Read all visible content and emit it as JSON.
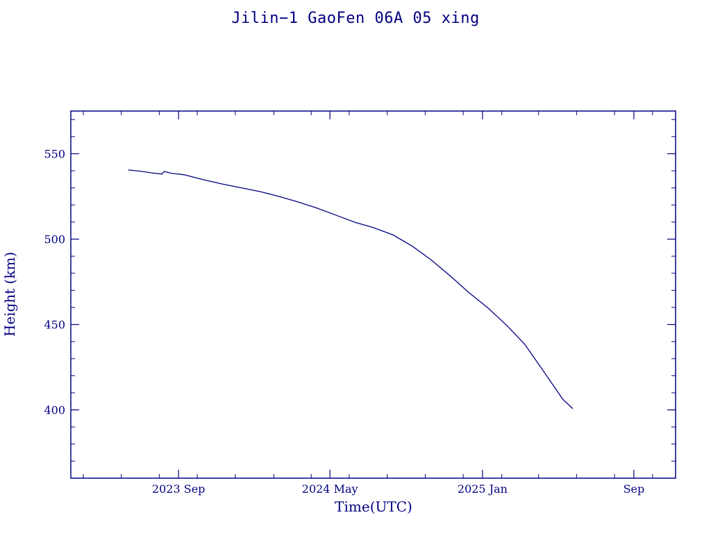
{
  "chart_data": {
    "type": "line",
    "title": "Jilin−1 GaoFen 06A 05 xing",
    "xlabel": "Time(UTC)",
    "ylabel": "Height (km)",
    "color": "#000080",
    "xlim": [
      "2023-03-12",
      "2025-11-07"
    ],
    "ylim": [
      360,
      575
    ],
    "xticks": [
      {
        "date": "2023-09-01",
        "label": "2023 Sep"
      },
      {
        "date": "2024-05-01",
        "label": "2024 May"
      },
      {
        "date": "2025-01-01",
        "label": "2025 Jan"
      },
      {
        "date": "2025-09-01",
        "label": "Sep"
      }
    ],
    "yticks": [
      400,
      450,
      500,
      550
    ],
    "series": [
      {
        "points": [
          {
            "x": "2023-06-12",
            "y": 540.5
          },
          {
            "x": "2023-07-01",
            "y": 539.8
          },
          {
            "x": "2023-07-20",
            "y": 538.8
          },
          {
            "x": "2023-08-05",
            "y": 538.1
          },
          {
            "x": "2023-08-09",
            "y": 539.6
          },
          {
            "x": "2023-08-20",
            "y": 538.6
          },
          {
            "x": "2023-09-10",
            "y": 537.7
          },
          {
            "x": "2023-10-10",
            "y": 534.9
          },
          {
            "x": "2023-11-10",
            "y": 532.3
          },
          {
            "x": "2023-12-10",
            "y": 530.1
          },
          {
            "x": "2024-01-10",
            "y": 527.8
          },
          {
            "x": "2024-02-10",
            "y": 524.9
          },
          {
            "x": "2024-03-10",
            "y": 521.9
          },
          {
            "x": "2024-04-10",
            "y": 518.2
          },
          {
            "x": "2024-05-10",
            "y": 514.1
          },
          {
            "x": "2024-06-10",
            "y": 509.9
          },
          {
            "x": "2024-07-10",
            "y": 506.7
          },
          {
            "x": "2024-08-10",
            "y": 502.5
          },
          {
            "x": "2024-09-10",
            "y": 495.9
          },
          {
            "x": "2024-10-10",
            "y": 488.0
          },
          {
            "x": "2024-11-10",
            "y": 478.5
          },
          {
            "x": "2024-12-10",
            "y": 468.7
          },
          {
            "x": "2025-01-10",
            "y": 459.6
          },
          {
            "x": "2025-02-10",
            "y": 449.1
          },
          {
            "x": "2025-03-10",
            "y": 438.3
          },
          {
            "x": "2025-04-10",
            "y": 422.1
          },
          {
            "x": "2025-05-10",
            "y": 406.2
          },
          {
            "x": "2025-05-26",
            "y": 400.7
          }
        ]
      }
    ]
  }
}
